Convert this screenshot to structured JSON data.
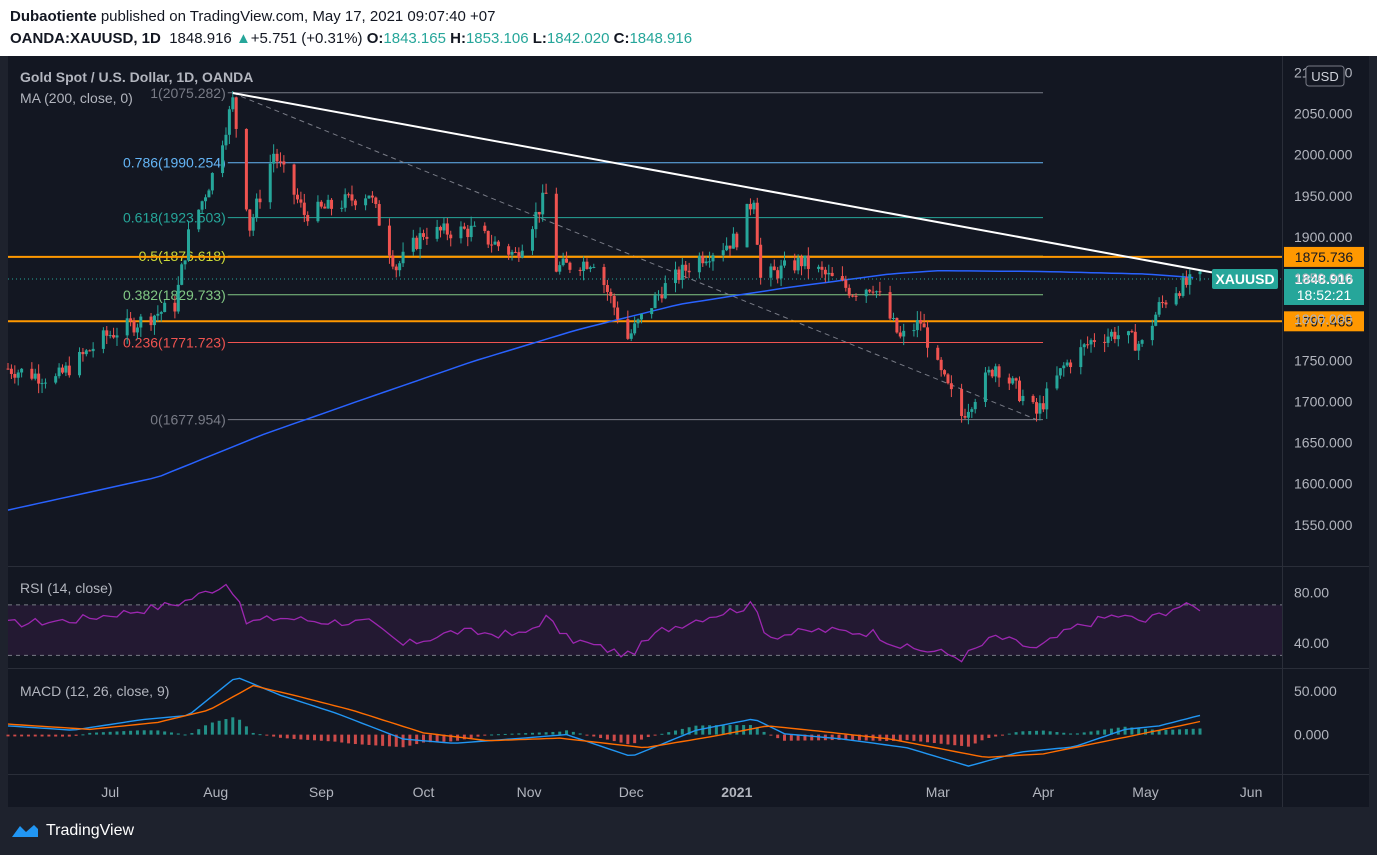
{
  "header": {
    "author": "Dubaotiente",
    "published_text": "published on TradingView.com, May 17, 2021 09:07:40 +07",
    "symbol": "OANDA:XAUUSD, 1D",
    "last": "1848.916",
    "change": "+5.751 (+0.31%)",
    "o_label": "O:",
    "o_value": "1843.165",
    "h_label": "H:",
    "h_value": "1853.106",
    "l_label": "L:",
    "l_value": "1842.020",
    "c_label": "C:",
    "c_value": "1848.916",
    "up_arrow": "▲"
  },
  "footer": {
    "brand": "TradingView"
  },
  "colors": {
    "up": "#26a69a",
    "down": "#ef5350",
    "ma": "#2962ff",
    "rsi": "#9c27b0",
    "macd": "#2196f3",
    "signal": "#ff6d00",
    "hline": "#ff9800",
    "trend": "#ffffff"
  },
  "chart_data": [
    {
      "type": "candlestick",
      "title": "Gold Spot / U.S. Dollar, 1D, OANDA",
      "indicator_label": "MA (200, close, 0)",
      "currency": "USD",
      "ylim": [
        1500,
        2120
      ],
      "y_ticks": [
        "2100.000",
        "2050.000",
        "2000.000",
        "1950.000",
        "1900.000",
        "1850.000",
        "1800.000",
        "1750.000",
        "1700.000",
        "1650.000",
        "1600.000",
        "1550.000"
      ],
      "x_ticks": [
        "Jul",
        "Aug",
        "Sep",
        "Oct",
        "Nov",
        "Dec",
        "2021",
        "Mar",
        "Apr",
        "May",
        "Jun"
      ],
      "price_anchors": [
        {
          "date": "2020-06-01",
          "close": 1740
        },
        {
          "date": "2020-06-15",
          "close": 1727
        },
        {
          "date": "2020-06-30",
          "close": 1780
        },
        {
          "date": "2020-07-10",
          "close": 1798
        },
        {
          "date": "2020-07-20",
          "close": 1817
        },
        {
          "date": "2020-07-24",
          "close": 1902
        },
        {
          "date": "2020-07-31",
          "close": 1975
        },
        {
          "date": "2020-08-06",
          "close": 2065
        },
        {
          "date": "2020-08-11",
          "close": 1912
        },
        {
          "date": "2020-08-18",
          "close": 2002
        },
        {
          "date": "2020-08-27",
          "close": 1928
        },
        {
          "date": "2020-09-03",
          "close": 1935
        },
        {
          "date": "2020-09-15",
          "close": 1954
        },
        {
          "date": "2020-09-23",
          "close": 1863
        },
        {
          "date": "2020-10-01",
          "close": 1905
        },
        {
          "date": "2020-10-15",
          "close": 1908
        },
        {
          "date": "2020-10-28",
          "close": 1878
        },
        {
          "date": "2020-11-06",
          "close": 1951
        },
        {
          "date": "2020-11-09",
          "close": 1862
        },
        {
          "date": "2020-11-20",
          "close": 1872
        },
        {
          "date": "2020-11-30",
          "close": 1777
        },
        {
          "date": "2020-12-10",
          "close": 1836
        },
        {
          "date": "2020-12-21",
          "close": 1875
        },
        {
          "date": "2021-01-01",
          "close": 1898
        },
        {
          "date": "2021-01-06",
          "close": 1950
        },
        {
          "date": "2021-01-08",
          "close": 1849
        },
        {
          "date": "2021-01-20",
          "close": 1870
        },
        {
          "date": "2021-02-04",
          "close": 1834
        },
        {
          "date": "2021-02-10",
          "close": 1842
        },
        {
          "date": "2021-02-18",
          "close": 1776
        },
        {
          "date": "2021-02-24",
          "close": 1797
        },
        {
          "date": "2021-03-01",
          "close": 1740
        },
        {
          "date": "2021-03-08",
          "close": 1683
        },
        {
          "date": "2021-03-18",
          "close": 1745
        },
        {
          "date": "2021-03-30",
          "close": 1685
        },
        {
          "date": "2021-04-07",
          "close": 1742
        },
        {
          "date": "2021-04-16",
          "close": 1777
        },
        {
          "date": "2021-04-22",
          "close": 1783
        },
        {
          "date": "2021-04-30",
          "close": 1769
        },
        {
          "date": "2021-05-05",
          "close": 1815
        },
        {
          "date": "2021-05-10",
          "close": 1837
        },
        {
          "date": "2021-05-14",
          "close": 1844
        },
        {
          "date": "2021-05-17",
          "close": 1849
        }
      ],
      "ma200": [
        {
          "date": "2020-06-01",
          "value": 1568
        },
        {
          "date": "2020-07-15",
          "value": 1608
        },
        {
          "date": "2020-08-15",
          "value": 1660
        },
        {
          "date": "2020-09-15",
          "value": 1705
        },
        {
          "date": "2020-10-15",
          "value": 1748
        },
        {
          "date": "2020-11-15",
          "value": 1787
        },
        {
          "date": "2020-12-15",
          "value": 1818
        },
        {
          "date": "2021-01-15",
          "value": 1838
        },
        {
          "date": "2021-02-15",
          "value": 1855
        },
        {
          "date": "2021-03-01",
          "value": 1859
        },
        {
          "date": "2021-04-01",
          "value": 1858
        },
        {
          "date": "2021-05-01",
          "value": 1855
        },
        {
          "date": "2021-05-17",
          "value": 1850
        }
      ],
      "fib_levels": [
        {
          "label": "1(2075.282)",
          "value": 2075.282,
          "color": "#787b86"
        },
        {
          "label": "0.786(1990.254)",
          "value": 1990.254,
          "color": "#64b5f6"
        },
        {
          "label": "0.618(1923.503)",
          "value": 1923.503,
          "color": "#26a69a"
        },
        {
          "label": "0.5(1876.618)",
          "value": 1876.618,
          "color": "#cddc39"
        },
        {
          "label": "0.382(1829.733)",
          "value": 1829.733,
          "color": "#81c784"
        },
        {
          "label": "0.236(1771.723)",
          "value": 1771.723,
          "color": "#ef5350"
        },
        {
          "label": "0(1677.954)",
          "value": 1677.954,
          "color": "#787b86"
        }
      ],
      "horizontal_levels": [
        {
          "label": "1875.736",
          "value": 1875.736
        },
        {
          "label": "1797.465",
          "value": 1797.465
        }
      ],
      "trendline": {
        "from": {
          "date": "2020-08-06",
          "value": 2075
        },
        "to": {
          "date": "2021-05-17",
          "value": 1857
        }
      },
      "fib_diagonal": {
        "from": {
          "date": "2020-08-06",
          "value": 2075
        },
        "to": {
          "date": "2021-03-30",
          "value": 1678
        }
      },
      "last_price_label": {
        "symbol": "XAUUSD",
        "price": "1848.916",
        "countdown": "18:52:21"
      }
    },
    {
      "type": "line",
      "title": "RSI (14, close)",
      "ylim": [
        20,
        100
      ],
      "y_ticks": [
        "80.00",
        "40.00"
      ],
      "bands": [
        70,
        30
      ],
      "values": [
        {
          "date": "2020-06-01",
          "value": 55
        },
        {
          "date": "2020-06-20",
          "value": 58
        },
        {
          "date": "2020-07-10",
          "value": 66
        },
        {
          "date": "2020-07-22",
          "value": 72
        },
        {
          "date": "2020-08-05",
          "value": 88
        },
        {
          "date": "2020-08-10",
          "value": 56
        },
        {
          "date": "2020-08-20",
          "value": 60
        },
        {
          "date": "2020-09-01",
          "value": 57
        },
        {
          "date": "2020-09-15",
          "value": 56
        },
        {
          "date": "2020-09-25",
          "value": 38
        },
        {
          "date": "2020-10-10",
          "value": 49
        },
        {
          "date": "2020-10-30",
          "value": 46
        },
        {
          "date": "2020-11-06",
          "value": 60
        },
        {
          "date": "2020-11-12",
          "value": 44
        },
        {
          "date": "2020-11-30",
          "value": 30
        },
        {
          "date": "2020-12-10",
          "value": 50
        },
        {
          "date": "2020-12-22",
          "value": 60
        },
        {
          "date": "2021-01-06",
          "value": 70
        },
        {
          "date": "2021-01-10",
          "value": 45
        },
        {
          "date": "2021-01-25",
          "value": 50
        },
        {
          "date": "2021-02-10",
          "value": 48
        },
        {
          "date": "2021-02-19",
          "value": 36
        },
        {
          "date": "2021-03-01",
          "value": 33
        },
        {
          "date": "2021-03-08",
          "value": 28
        },
        {
          "date": "2021-03-18",
          "value": 45
        },
        {
          "date": "2021-03-30",
          "value": 35
        },
        {
          "date": "2021-04-10",
          "value": 52
        },
        {
          "date": "2021-04-22",
          "value": 62
        },
        {
          "date": "2021-05-01",
          "value": 57
        },
        {
          "date": "2021-05-10",
          "value": 69
        },
        {
          "date": "2021-05-17",
          "value": 68
        }
      ]
    },
    {
      "type": "line",
      "title": "MACD (12, 26, close, 9)",
      "ylim": [
        -45,
        75
      ],
      "y_ticks": [
        "50.000",
        "0.000"
      ],
      "series": [
        {
          "values": [
            {
              "date": "2020-06-01",
              "value": 10
            },
            {
              "date": "2020-06-20",
              "value": 5
            },
            {
              "date": "2020-07-10",
              "value": 17
            },
            {
              "date": "2020-07-24",
              "value": 22
            },
            {
              "date": "2020-08-07",
              "value": 66
            },
            {
              "date": "2020-08-20",
              "value": 45
            },
            {
              "date": "2020-09-05",
              "value": 25
            },
            {
              "date": "2020-09-25",
              "value": -5
            },
            {
              "date": "2020-10-10",
              "value": -10
            },
            {
              "date": "2020-10-30",
              "value": -4
            },
            {
              "date": "2020-11-12",
              "value": 0
            },
            {
              "date": "2020-12-01",
              "value": -25
            },
            {
              "date": "2020-12-20",
              "value": 5
            },
            {
              "date": "2021-01-06",
              "value": 18
            },
            {
              "date": "2021-01-15",
              "value": 1
            },
            {
              "date": "2021-02-01",
              "value": -5
            },
            {
              "date": "2021-02-20",
              "value": -15
            },
            {
              "date": "2021-03-10",
              "value": -36
            },
            {
              "date": "2021-03-25",
              "value": -20
            },
            {
              "date": "2021-04-10",
              "value": -14
            },
            {
              "date": "2021-04-25",
              "value": 6
            },
            {
              "date": "2021-05-05",
              "value": 10
            },
            {
              "date": "2021-05-17",
              "value": 22
            }
          ]
        },
        {
          "values": [
            {
              "date": "2020-06-01",
              "value": 12
            },
            {
              "date": "2020-06-25",
              "value": 6
            },
            {
              "date": "2020-07-15",
              "value": 14
            },
            {
              "date": "2020-07-30",
              "value": 28
            },
            {
              "date": "2020-08-12",
              "value": 56
            },
            {
              "date": "2020-08-25",
              "value": 44
            },
            {
              "date": "2020-09-10",
              "value": 28
            },
            {
              "date": "2020-10-01",
              "value": 2
            },
            {
              "date": "2020-10-20",
              "value": -7
            },
            {
              "date": "2020-11-10",
              "value": -4
            },
            {
              "date": "2020-12-05",
              "value": -15
            },
            {
              "date": "2020-12-25",
              "value": -2
            },
            {
              "date": "2021-01-10",
              "value": 10
            },
            {
              "date": "2021-01-25",
              "value": 4
            },
            {
              "date": "2021-02-15",
              "value": -5
            },
            {
              "date": "2021-03-15",
              "value": -26
            },
            {
              "date": "2021-04-01",
              "value": -22
            },
            {
              "date": "2021-04-20",
              "value": -7
            },
            {
              "date": "2021-05-05",
              "value": 5
            },
            {
              "date": "2021-05-17",
              "value": 15
            }
          ]
        }
      ]
    }
  ]
}
